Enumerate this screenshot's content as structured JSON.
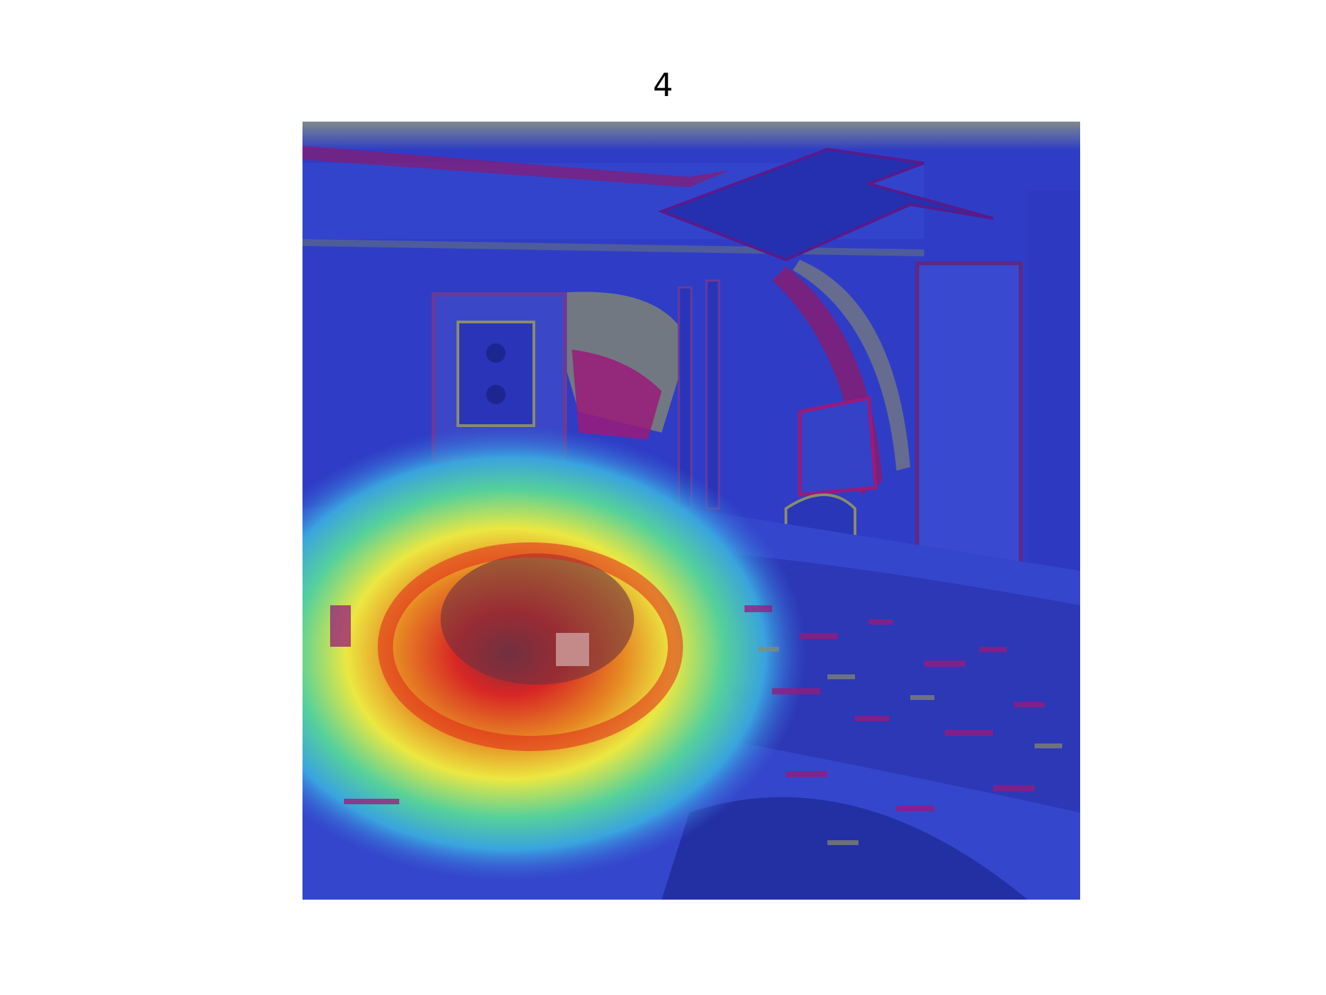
{
  "figure": {
    "title": "4"
  },
  "image_panel": {
    "content": "bedroom-photo-with-attention-heatmap",
    "colormap": "jet",
    "hotspot": "bed-pillow-region",
    "marker_color": "#c48a8a"
  },
  "colors": {
    "background": "#ffffff",
    "cold": "#2b3bd0",
    "warm": "#f5f03a",
    "hot": "#e0241c",
    "edge": "#8a1a6e"
  }
}
